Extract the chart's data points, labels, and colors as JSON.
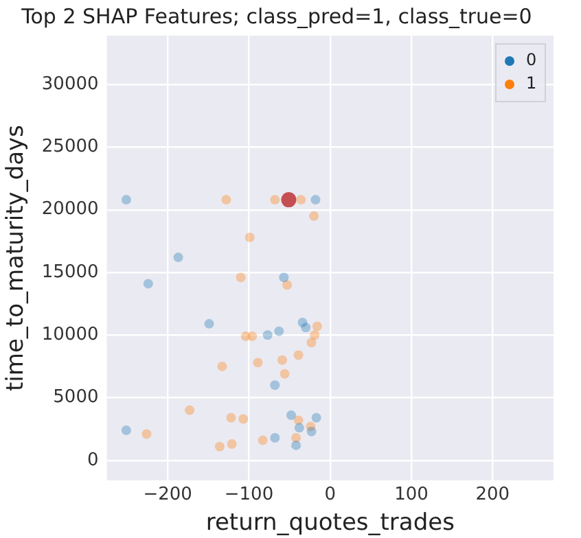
{
  "chart_data": {
    "type": "scatter",
    "title": "Top 2 SHAP Features; class_pred=1, class_true=0",
    "xlabel": "return_quotes_trades",
    "ylabel": "time_to_maturity_days",
    "xlim": [
      -275,
      275
    ],
    "ylim": [
      -1600,
      33900
    ],
    "xticks": [
      -200,
      -100,
      0,
      100,
      200
    ],
    "yticks": [
      0,
      5000,
      10000,
      15000,
      20000,
      25000,
      30000
    ],
    "grid": true,
    "legend": "top right",
    "marker": "circle",
    "series": [
      {
        "name": "0",
        "color": "#1f77b4",
        "x": [
          -224,
          -57,
          -149,
          -63,
          -77,
          -30,
          -34,
          -68,
          -48,
          -38,
          -23,
          -68,
          -42,
          -251,
          -17,
          -187,
          -18,
          -251
        ],
        "values": [
          14100,
          14600,
          10900,
          10300,
          10000,
          10600,
          11000,
          6000,
          3600,
          2600,
          2300,
          1800,
          1200,
          2400,
          3400,
          16200,
          20800,
          20800
        ]
      },
      {
        "name": "1",
        "color": "#ff7f0e",
        "x": [
          -110,
          -53,
          -104,
          -96,
          -19,
          -23,
          -16,
          -59,
          -89,
          -39,
          -133,
          -56,
          -173,
          -122,
          -39,
          -24,
          -42,
          -121,
          -136,
          -83,
          -226,
          -107,
          -68,
          -36,
          -128,
          -99,
          -20
        ],
        "values": [
          14600,
          14000,
          9900,
          9900,
          10000,
          9400,
          10700,
          8000,
          7800,
          8400,
          7500,
          6900,
          4000,
          3400,
          3200,
          2700,
          1800,
          1300,
          1100,
          1600,
          2100,
          3300,
          20800,
          20800,
          20800,
          17800,
          19500
        ]
      },
      {
        "color": "#c44e52",
        "x": [
          -51
        ],
        "values": [
          20800
        ]
      }
    ]
  }
}
